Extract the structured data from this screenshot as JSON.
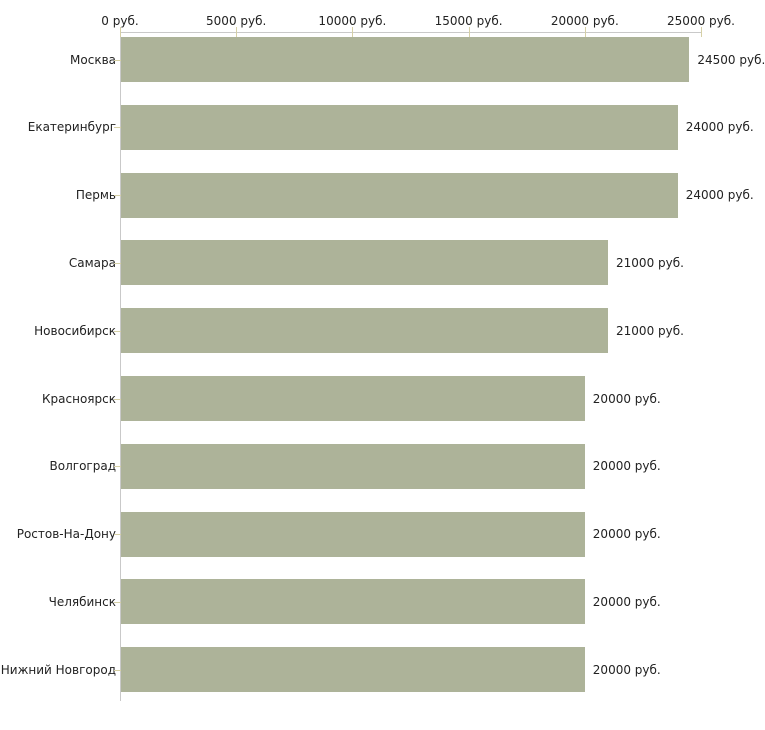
{
  "chart_data": {
    "type": "bar",
    "orientation": "horizontal",
    "title": "",
    "xlabel": "",
    "ylabel": "",
    "categories": [
      "Москва",
      "Екатеринбург",
      "Пермь",
      "Самара",
      "Новосибирск",
      "Красноярск",
      "Волгоград",
      "Ростов-На-Дону",
      "Челябинск",
      "Нижний Новгород"
    ],
    "values": [
      24500,
      24000,
      24000,
      21000,
      21000,
      20000,
      20000,
      20000,
      20000,
      20000
    ],
    "value_labels": [
      "24500 руб.",
      "24000 руб.",
      "24000 руб.",
      "21000 руб.",
      "21000 руб.",
      "20000 руб.",
      "20000 руб.",
      "20000 руб.",
      "20000 руб.",
      "20000 руб."
    ],
    "x_axis": {
      "position": "top",
      "xlim": [
        0,
        25000
      ],
      "tick_values": [
        0,
        5000,
        10000,
        15000,
        20000,
        25000
      ],
      "tick_labels": [
        "0 руб.",
        "5000 руб.",
        "10000 руб.",
        "15000 руб.",
        "20000 руб.",
        "25000 руб."
      ]
    },
    "grid": false,
    "legend": false,
    "colors": {
      "bar": "#adb399",
      "axis_line": "#c9c9c9",
      "tick_mark": "#d6d0a6",
      "text": "#222222",
      "background": "#ffffff"
    }
  }
}
